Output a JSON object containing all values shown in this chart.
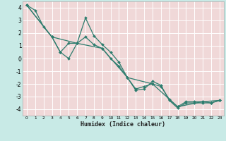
{
  "series": [
    {
      "x": [
        0,
        1,
        2,
        3,
        4,
        5,
        6,
        7,
        8,
        9,
        10,
        11,
        12,
        13,
        14,
        15,
        16,
        17,
        18,
        19,
        20,
        21,
        22,
        23
      ],
      "y": [
        4.2,
        3.8,
        2.5,
        1.7,
        0.5,
        0.0,
        1.2,
        3.2,
        1.8,
        1.1,
        0.5,
        -0.3,
        -1.5,
        -2.5,
        -2.4,
        -1.8,
        -2.1,
        -3.3,
        -3.9,
        -3.5,
        -3.5,
        -3.5,
        -3.5,
        -3.3
      ]
    },
    {
      "x": [
        0,
        3,
        4,
        5,
        6,
        7,
        8,
        9,
        10,
        11,
        12,
        13,
        14,
        15,
        16,
        17,
        18,
        19,
        20,
        21,
        22,
        23
      ],
      "y": [
        4.2,
        1.7,
        0.5,
        1.2,
        1.2,
        1.7,
        1.1,
        0.8,
        0.0,
        -0.6,
        -1.5,
        -2.4,
        -2.2,
        -2.0,
        -2.2,
        -3.2,
        -3.8,
        -3.4,
        -3.4,
        -3.4,
        -3.5,
        -3.3
      ]
    },
    {
      "x": [
        0,
        3,
        6,
        9,
        12,
        15,
        18,
        21,
        23
      ],
      "y": [
        4.2,
        1.7,
        1.2,
        0.8,
        -1.5,
        -2.0,
        -3.8,
        -3.4,
        -3.3
      ]
    }
  ],
  "line_color": "#2d7d6e",
  "outer_bg": "#c8eae6",
  "plot_bg": "#f0d8d8",
  "grid_color": "#ffffff",
  "xlabel": "Humidex (Indice chaleur)",
  "xlim": [
    -0.5,
    23.5
  ],
  "ylim": [
    -4.5,
    4.5
  ],
  "xticks": [
    0,
    1,
    2,
    3,
    4,
    5,
    6,
    7,
    8,
    9,
    10,
    11,
    12,
    13,
    14,
    15,
    16,
    17,
    18,
    19,
    20,
    21,
    22,
    23
  ],
  "yticks": [
    -4,
    -3,
    -2,
    -1,
    0,
    1,
    2,
    3,
    4
  ],
  "marker": "D",
  "markersize": 2.0,
  "linewidth": 0.9
}
